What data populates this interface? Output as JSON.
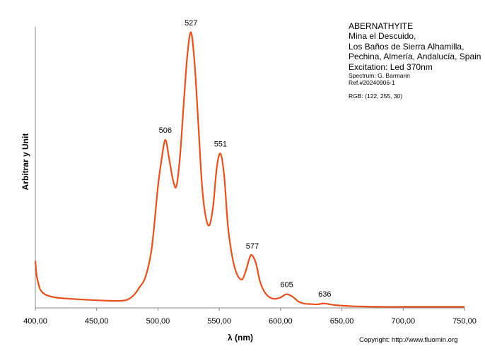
{
  "info": {
    "mineral": "ABERNATHYITE",
    "locality_line1": "Mina el Descuido,",
    "locality_line2": "Los Baños de Sierra Alhamilla,",
    "locality_line3": "Pechina, Almería, Andalucía, Spain",
    "excitation": "Excitation: Led 370nm",
    "spectrum_by": "Spectrum: G. Barmarin",
    "reference": "Ref.#20240906-1",
    "rgb": "RGB: (122, 255, 30)"
  },
  "copyright": "Copyright: http://www.fluomin.org",
  "chart_data": {
    "type": "line",
    "title": "",
    "xlabel": "λ (nm)",
    "ylabel": "Arbitrar y Unit",
    "xlim": [
      400,
      750
    ],
    "ylim": [
      0,
      1.02
    ],
    "x_ticks": [
      400,
      450,
      500,
      550,
      600,
      650,
      700,
      750
    ],
    "x_tick_labels": [
      "400,00",
      "450,00",
      "500,00",
      "550,00",
      "600,00",
      "650,00",
      "700,00",
      "750,00"
    ],
    "grid": false,
    "legend": "none",
    "series_color": "#e8501e",
    "series": [
      {
        "x": [
          400,
          401,
          403,
          405,
          410,
          420,
          440,
          460,
          470,
          475,
          480,
          485,
          490,
          495,
          500,
          503,
          506,
          509,
          512,
          515,
          518,
          521,
          524,
          527,
          530,
          533,
          536,
          539,
          542,
          545,
          548,
          551,
          554,
          557,
          560,
          563,
          566,
          569,
          572,
          575,
          577,
          580,
          583,
          586,
          590,
          595,
          600,
          605,
          610,
          615,
          620,
          625,
          630,
          636,
          645,
          660,
          680,
          700,
          720,
          750
        ],
        "y": [
          0.17,
          0.12,
          0.08,
          0.06,
          0.045,
          0.036,
          0.03,
          0.026,
          0.026,
          0.03,
          0.045,
          0.075,
          0.115,
          0.22,
          0.44,
          0.54,
          0.61,
          0.545,
          0.47,
          0.44,
          0.55,
          0.74,
          0.92,
          1.0,
          0.88,
          0.66,
          0.44,
          0.33,
          0.3,
          0.37,
          0.51,
          0.56,
          0.48,
          0.3,
          0.2,
          0.14,
          0.11,
          0.105,
          0.14,
          0.185,
          0.19,
          0.16,
          0.1,
          0.065,
          0.042,
          0.033,
          0.038,
          0.05,
          0.04,
          0.022,
          0.015,
          0.014,
          0.013,
          0.016,
          0.01,
          0.006,
          0.004,
          0.004,
          0.004,
          0.004
        ]
      }
    ],
    "peaks": [
      {
        "x": 506,
        "y": 0.61,
        "label": "506"
      },
      {
        "x": 527,
        "y": 1.0,
        "label": "527"
      },
      {
        "x": 551,
        "y": 0.56,
        "label": "551"
      },
      {
        "x": 577,
        "y": 0.19,
        "label": "577"
      },
      {
        "x": 605,
        "y": 0.05,
        "label": "605"
      },
      {
        "x": 636,
        "y": 0.016,
        "label": "636"
      }
    ]
  }
}
